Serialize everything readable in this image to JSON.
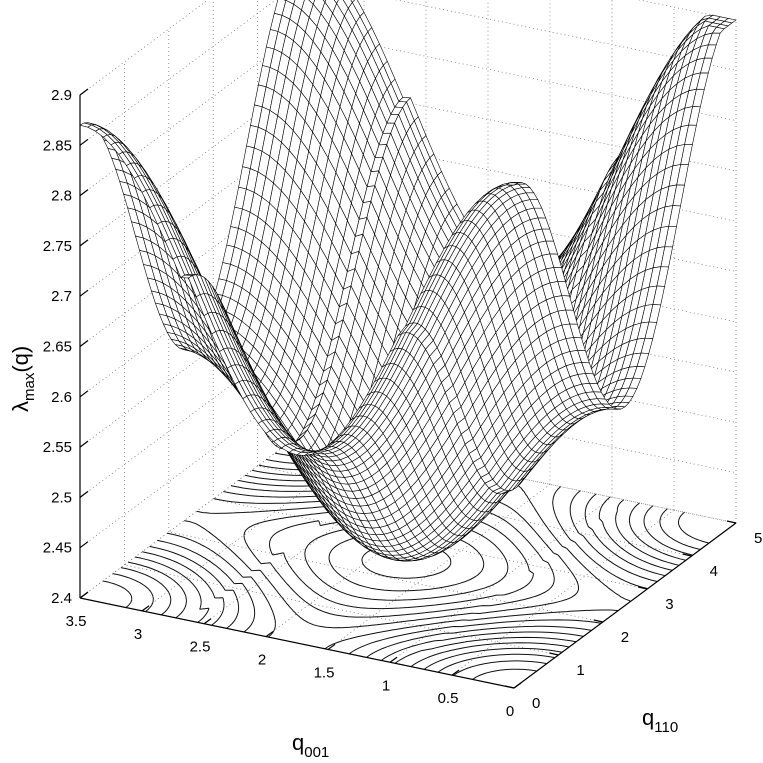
{
  "chart_data": {
    "type": "surface",
    "title": "",
    "xlabel": {
      "main": "q",
      "sub": "001"
    },
    "ylabel": {
      "main": "q",
      "sub": "110"
    },
    "zlabel": {
      "lambda": "λ",
      "sub": "max",
      "rest": "(q)"
    },
    "xlim": [
      0,
      3.5
    ],
    "ylim": [
      0,
      5
    ],
    "zlim": [
      2.4,
      2.9
    ],
    "x_ticks": [
      "0",
      "0.5",
      "1",
      "1.5",
      "2",
      "2.5",
      "3",
      "3.5"
    ],
    "y_ticks": [
      "0",
      "1",
      "2",
      "3",
      "4",
      "5"
    ],
    "z_ticks": [
      "2.4",
      "2.45",
      "2.5",
      "2.55",
      "2.6",
      "2.65",
      "2.7",
      "2.75",
      "2.8",
      "2.85",
      "2.9"
    ],
    "grid": true,
    "surface_peaks": [
      {
        "q001": 3.5,
        "q110": 0,
        "value": 2.81
      },
      {
        "q001": 3.5,
        "q110": 5,
        "value": 2.89
      },
      {
        "q001": 0,
        "q110": 0,
        "value": 2.89
      },
      {
        "q001": 0,
        "q110": 5,
        "value": 2.9
      },
      {
        "q001": 1.75,
        "q110": 2.5,
        "value": 2.82
      }
    ],
    "surface_minima": [
      {
        "q001": 1.75,
        "q110": 0,
        "value": 2.4
      },
      {
        "q001": 0,
        "q110": 2.5,
        "value": 2.4
      },
      {
        "q001": 3.5,
        "q110": 2.5,
        "value": 2.51
      },
      {
        "q001": 1.75,
        "q110": 5,
        "value": 2.55
      }
    ],
    "contour_projection": "z = 2.4 plane"
  }
}
